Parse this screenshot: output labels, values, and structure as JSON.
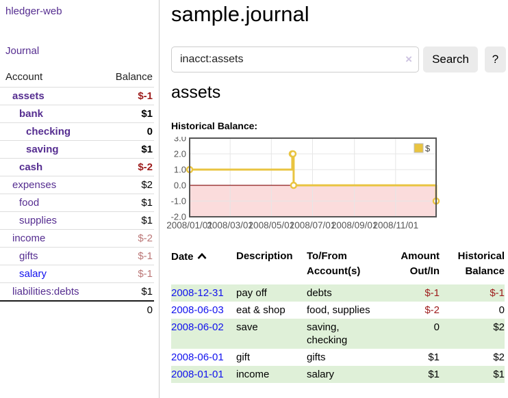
{
  "app": {
    "brand": "hledger-web"
  },
  "sidebar": {
    "nav": {
      "journal": "Journal"
    },
    "accounts_table": {
      "headers": {
        "account": "Account",
        "balance": "Balance"
      },
      "rows": [
        {
          "name": "assets",
          "balance": "$-1",
          "indent": 1,
          "bold": true,
          "balance_style": "neg-strong",
          "name_style": "purple"
        },
        {
          "name": "bank",
          "balance": "$1",
          "indent": 2,
          "bold": true,
          "balance_style": "pos",
          "name_style": "purple"
        },
        {
          "name": "checking",
          "balance": "0",
          "indent": 3,
          "bold": true,
          "balance_style": "pos",
          "name_style": "purple"
        },
        {
          "name": "saving",
          "balance": "$1",
          "indent": 3,
          "bold": true,
          "balance_style": "pos",
          "name_style": "purple"
        },
        {
          "name": "cash",
          "balance": "$-2",
          "indent": 2,
          "bold": true,
          "balance_style": "neg-strong",
          "name_style": "purple"
        },
        {
          "name": "expenses",
          "balance": "$2",
          "indent": 1,
          "bold": false,
          "balance_style": "pos",
          "name_style": "purple"
        },
        {
          "name": "food",
          "balance": "$1",
          "indent": 2,
          "bold": false,
          "balance_style": "pos",
          "name_style": "purple"
        },
        {
          "name": "supplies",
          "balance": "$1",
          "indent": 2,
          "bold": false,
          "balance_style": "pos",
          "name_style": "purple"
        },
        {
          "name": "income",
          "balance": "$-2",
          "indent": 1,
          "bold": false,
          "balance_style": "neg-muted",
          "name_style": "purple"
        },
        {
          "name": "gifts",
          "balance": "$-1",
          "indent": 2,
          "bold": false,
          "balance_style": "neg-muted",
          "name_style": "purple"
        },
        {
          "name": "salary",
          "balance": "$-1",
          "indent": 2,
          "bold": false,
          "balance_style": "neg-muted",
          "name_style": "blue"
        },
        {
          "name": "liabilities:debts",
          "balance": "$1",
          "indent": 1,
          "bold": false,
          "balance_style": "pos",
          "name_style": "purple"
        }
      ],
      "total": "0"
    }
  },
  "main": {
    "page_title": "sample.journal",
    "search": {
      "value": "inacct:assets",
      "clear_icon": "×",
      "submit_label": "Search",
      "help_label": "?"
    },
    "account_heading": "assets",
    "chart_title": "Historical Balance:"
  },
  "chart_data": {
    "type": "line",
    "subtype": "step-after",
    "title": "Historical Balance",
    "series": [
      {
        "name": "$",
        "color": "#e9c440",
        "points": [
          [
            "2008-01-01",
            1.0
          ],
          [
            "2008-06-01",
            2.0
          ],
          [
            "2008-06-02",
            2.0
          ],
          [
            "2008-06-03",
            0.0
          ],
          [
            "2008-12-31",
            -1.0
          ]
        ]
      }
    ],
    "x_range": [
      "2008-01-01",
      "2008-12-31"
    ],
    "ylim": [
      -2.0,
      3.0
    ],
    "yticks": [
      {
        "v": 3,
        "label": "3.0"
      },
      {
        "v": 2,
        "label": "2.0"
      },
      {
        "v": 1,
        "label": "1.0"
      },
      {
        "v": 0,
        "label": "0.0"
      },
      {
        "v": -1,
        "label": "-1.0"
      },
      {
        "v": -2,
        "label": "-2.0"
      }
    ],
    "xticks": [
      {
        "date": "2008-01-01",
        "label": "2008/01/01"
      },
      {
        "date": "2008-03-01",
        "label": "2008/03/01"
      },
      {
        "date": "2008-05-01",
        "label": "2008/05/01"
      },
      {
        "date": "2008-07-01",
        "label": "2008/07/01"
      },
      {
        "date": "2008-09-01",
        "label": "2008/09/01"
      },
      {
        "date": "2008-11-01",
        "label": "2008/11/01"
      }
    ],
    "legend": {
      "position": "top-right",
      "label": "$"
    },
    "grid": true,
    "colors": {
      "negative_region": "#fbdcdc",
      "zero_line": "#8b1a1a",
      "grid": "#e6e6e6",
      "border": "#545454",
      "marker_fill": "#ffffff",
      "tick_text": "#545454"
    }
  },
  "register": {
    "headers": {
      "date": "Date",
      "sort_icon": "chevron-up",
      "description": "Description",
      "accounts": "To/From Account(s)",
      "amount": "Amount Out/In",
      "balance": "Historical Balance"
    },
    "rows": [
      {
        "date": "2008-12-31",
        "description": "pay off",
        "accounts": "debts",
        "amount": "$-1",
        "amount_negative": true,
        "balance": "$-1",
        "balance_negative": true,
        "highlight": true
      },
      {
        "date": "2008-06-03",
        "description": "eat & shop",
        "accounts": "food, supplies",
        "amount": "$-2",
        "amount_negative": true,
        "balance": "0",
        "balance_negative": false,
        "highlight": false
      },
      {
        "date": "2008-06-02",
        "description": "save",
        "accounts": "saving, checking",
        "amount": "0",
        "amount_negative": false,
        "balance": "$2",
        "balance_negative": false,
        "highlight": true
      },
      {
        "date": "2008-06-01",
        "description": "gift",
        "accounts": "gifts",
        "amount": "$1",
        "amount_negative": false,
        "balance": "$2",
        "balance_negative": false,
        "highlight": false
      },
      {
        "date": "2008-01-01",
        "description": "income",
        "accounts": "salary",
        "amount": "$1",
        "amount_negative": false,
        "balance": "$1",
        "balance_negative": false,
        "highlight": true
      }
    ]
  }
}
